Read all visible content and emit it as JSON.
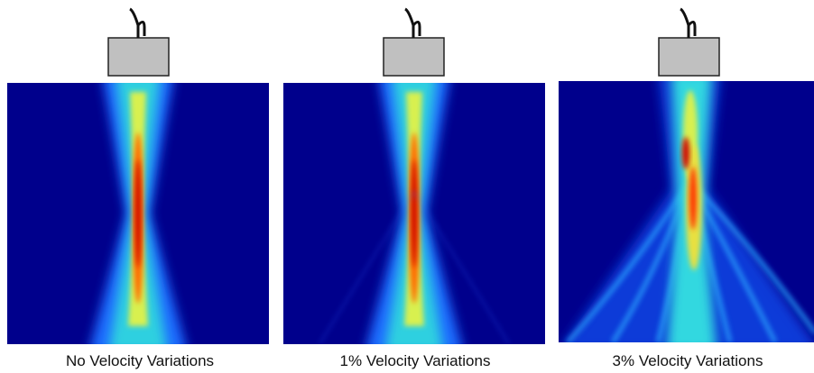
{
  "panels": [
    {
      "caption": "No Velocity Variations"
    },
    {
      "caption": "1% Velocity Variations"
    },
    {
      "caption": "3% Velocity Variations"
    }
  ]
}
